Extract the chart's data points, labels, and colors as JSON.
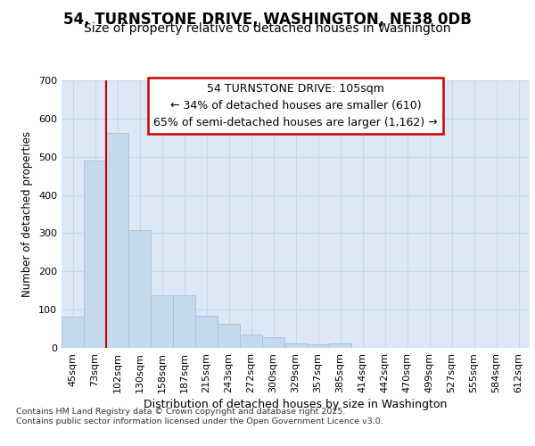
{
  "title": "54, TURNSTONE DRIVE, WASHINGTON, NE38 0DB",
  "subtitle": "Size of property relative to detached houses in Washington",
  "xlabel": "Distribution of detached houses by size in Washington",
  "ylabel": "Number of detached properties",
  "categories": [
    "45sqm",
    "73sqm",
    "102sqm",
    "130sqm",
    "158sqm",
    "187sqm",
    "215sqm",
    "243sqm",
    "272sqm",
    "300sqm",
    "329sqm",
    "357sqm",
    "385sqm",
    "414sqm",
    "442sqm",
    "470sqm",
    "499sqm",
    "527sqm",
    "555sqm",
    "584sqm",
    "612sqm"
  ],
  "values": [
    82,
    490,
    562,
    307,
    138,
    138,
    84,
    63,
    35,
    28,
    12,
    10,
    11,
    0,
    0,
    0,
    0,
    0,
    0,
    0,
    0
  ],
  "bar_color": "#c5d9ed",
  "bar_edge_color": "#aac4de",
  "grid_color": "#c8d8e8",
  "background_color": "#dce8f5",
  "vline_color": "#cc0000",
  "annotation_box_text": "54 TURNSTONE DRIVE: 105sqm\n← 34% of detached houses are smaller (610)\n65% of semi-detached houses are larger (1,162) →",
  "annotation_box_color": "#cc0000",
  "annotation_box_fill": "#ffffff",
  "footnote": "Contains HM Land Registry data © Crown copyright and database right 2025.\nContains public sector information licensed under the Open Government Licence v3.0.",
  "ylim": [
    0,
    700
  ],
  "yticks": [
    0,
    100,
    200,
    300,
    400,
    500,
    600,
    700
  ],
  "title_fontsize": 12,
  "subtitle_fontsize": 10,
  "xlabel_fontsize": 9,
  "ylabel_fontsize": 8.5,
  "tick_fontsize": 8,
  "annot_fontsize": 9
}
